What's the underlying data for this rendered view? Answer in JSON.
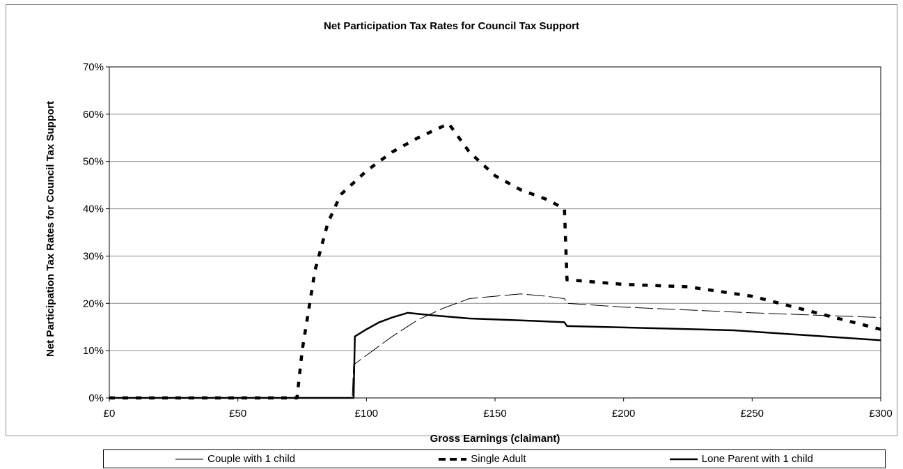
{
  "chart_data": {
    "type": "line",
    "title": "Net Participation Tax Rates for Council Tax Support",
    "xlabel": "Gross Earnings (claimant)",
    "ylabel": "Net Participation Tax Rates for Council Tax Support",
    "xlim": [
      0,
      300
    ],
    "ylim": [
      0,
      70
    ],
    "x_ticks": [
      0,
      50,
      100,
      150,
      200,
      250,
      300
    ],
    "x_tick_labels": [
      "£0",
      "£50",
      "£100",
      "£150",
      "£200",
      "£250",
      "£300"
    ],
    "y_ticks": [
      0,
      10,
      20,
      30,
      40,
      50,
      60,
      70
    ],
    "y_tick_labels": [
      "0%",
      "10%",
      "20%",
      "30%",
      "40%",
      "50%",
      "60%",
      "70%"
    ],
    "grid": "horizontal",
    "legend_position": "bottom",
    "series": [
      {
        "name": "Couple with 1 child",
        "style": "long-dash-thin",
        "color": "#000000",
        "points": [
          [
            0,
            0
          ],
          [
            94.5,
            0
          ],
          [
            95,
            7
          ],
          [
            100,
            9
          ],
          [
            110,
            13
          ],
          [
            120,
            16.5
          ],
          [
            130,
            19
          ],
          [
            140,
            21
          ],
          [
            150,
            21.5
          ],
          [
            160,
            22
          ],
          [
            170,
            21.5
          ],
          [
            177,
            21
          ],
          [
            178,
            20
          ],
          [
            200,
            19.2
          ],
          [
            250,
            18
          ],
          [
            300,
            17
          ]
        ]
      },
      {
        "name": "Single Adult",
        "style": "heavy-dash",
        "color": "#000000",
        "points": [
          [
            0,
            0
          ],
          [
            73,
            0
          ],
          [
            75,
            10
          ],
          [
            80,
            27
          ],
          [
            85,
            37
          ],
          [
            90,
            43
          ],
          [
            95,
            45.5
          ],
          [
            100,
            48
          ],
          [
            110,
            52
          ],
          [
            120,
            55
          ],
          [
            130,
            57.5
          ],
          [
            132,
            58
          ],
          [
            140,
            52
          ],
          [
            150,
            47
          ],
          [
            160,
            44
          ],
          [
            170,
            42
          ],
          [
            177,
            40
          ],
          [
            178,
            25
          ],
          [
            200,
            24
          ],
          [
            225,
            23.5
          ],
          [
            250,
            21.5
          ],
          [
            275,
            18
          ],
          [
            300,
            14.5
          ]
        ]
      },
      {
        "name": "Lone Parent with 1 child",
        "style": "solid-thick",
        "color": "#000000",
        "points": [
          [
            0,
            0
          ],
          [
            95,
            0
          ],
          [
            95.5,
            13
          ],
          [
            100,
            14.5
          ],
          [
            105,
            16
          ],
          [
            110,
            17
          ],
          [
            116,
            18
          ],
          [
            125,
            17.5
          ],
          [
            140,
            16.8
          ],
          [
            160,
            16.4
          ],
          [
            177,
            16
          ],
          [
            178,
            15.2
          ],
          [
            200,
            14.9
          ],
          [
            243,
            14.3
          ],
          [
            270,
            13.3
          ],
          [
            300,
            12.2
          ]
        ]
      }
    ]
  }
}
